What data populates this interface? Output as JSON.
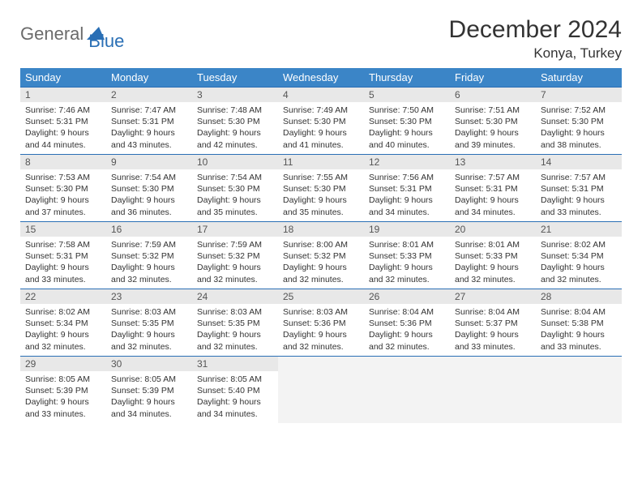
{
  "logo": {
    "text1": "General",
    "text2": "Blue"
  },
  "title": "December 2024",
  "location": "Konya, Turkey",
  "colors": {
    "header_bg": "#3b85c7",
    "header_text": "#ffffff",
    "border": "#2a6fb5",
    "daynum_bg": "#e8e8e8",
    "empty_bg": "#f3f3f3",
    "logo_gray": "#6b6b6b",
    "logo_blue": "#2a6fb5"
  },
  "day_headers": [
    "Sunday",
    "Monday",
    "Tuesday",
    "Wednesday",
    "Thursday",
    "Friday",
    "Saturday"
  ],
  "weeks": [
    [
      {
        "n": "1",
        "sr": "7:46 AM",
        "ss": "5:31 PM",
        "dl": "9 hours and 44 minutes."
      },
      {
        "n": "2",
        "sr": "7:47 AM",
        "ss": "5:31 PM",
        "dl": "9 hours and 43 minutes."
      },
      {
        "n": "3",
        "sr": "7:48 AM",
        "ss": "5:30 PM",
        "dl": "9 hours and 42 minutes."
      },
      {
        "n": "4",
        "sr": "7:49 AM",
        "ss": "5:30 PM",
        "dl": "9 hours and 41 minutes."
      },
      {
        "n": "5",
        "sr": "7:50 AM",
        "ss": "5:30 PM",
        "dl": "9 hours and 40 minutes."
      },
      {
        "n": "6",
        "sr": "7:51 AM",
        "ss": "5:30 PM",
        "dl": "9 hours and 39 minutes."
      },
      {
        "n": "7",
        "sr": "7:52 AM",
        "ss": "5:30 PM",
        "dl": "9 hours and 38 minutes."
      }
    ],
    [
      {
        "n": "8",
        "sr": "7:53 AM",
        "ss": "5:30 PM",
        "dl": "9 hours and 37 minutes."
      },
      {
        "n": "9",
        "sr": "7:54 AM",
        "ss": "5:30 PM",
        "dl": "9 hours and 36 minutes."
      },
      {
        "n": "10",
        "sr": "7:54 AM",
        "ss": "5:30 PM",
        "dl": "9 hours and 35 minutes."
      },
      {
        "n": "11",
        "sr": "7:55 AM",
        "ss": "5:30 PM",
        "dl": "9 hours and 35 minutes."
      },
      {
        "n": "12",
        "sr": "7:56 AM",
        "ss": "5:31 PM",
        "dl": "9 hours and 34 minutes."
      },
      {
        "n": "13",
        "sr": "7:57 AM",
        "ss": "5:31 PM",
        "dl": "9 hours and 34 minutes."
      },
      {
        "n": "14",
        "sr": "7:57 AM",
        "ss": "5:31 PM",
        "dl": "9 hours and 33 minutes."
      }
    ],
    [
      {
        "n": "15",
        "sr": "7:58 AM",
        "ss": "5:31 PM",
        "dl": "9 hours and 33 minutes."
      },
      {
        "n": "16",
        "sr": "7:59 AM",
        "ss": "5:32 PM",
        "dl": "9 hours and 32 minutes."
      },
      {
        "n": "17",
        "sr": "7:59 AM",
        "ss": "5:32 PM",
        "dl": "9 hours and 32 minutes."
      },
      {
        "n": "18",
        "sr": "8:00 AM",
        "ss": "5:32 PM",
        "dl": "9 hours and 32 minutes."
      },
      {
        "n": "19",
        "sr": "8:01 AM",
        "ss": "5:33 PM",
        "dl": "9 hours and 32 minutes."
      },
      {
        "n": "20",
        "sr": "8:01 AM",
        "ss": "5:33 PM",
        "dl": "9 hours and 32 minutes."
      },
      {
        "n": "21",
        "sr": "8:02 AM",
        "ss": "5:34 PM",
        "dl": "9 hours and 32 minutes."
      }
    ],
    [
      {
        "n": "22",
        "sr": "8:02 AM",
        "ss": "5:34 PM",
        "dl": "9 hours and 32 minutes."
      },
      {
        "n": "23",
        "sr": "8:03 AM",
        "ss": "5:35 PM",
        "dl": "9 hours and 32 minutes."
      },
      {
        "n": "24",
        "sr": "8:03 AM",
        "ss": "5:35 PM",
        "dl": "9 hours and 32 minutes."
      },
      {
        "n": "25",
        "sr": "8:03 AM",
        "ss": "5:36 PM",
        "dl": "9 hours and 32 minutes."
      },
      {
        "n": "26",
        "sr": "8:04 AM",
        "ss": "5:36 PM",
        "dl": "9 hours and 32 minutes."
      },
      {
        "n": "27",
        "sr": "8:04 AM",
        "ss": "5:37 PM",
        "dl": "9 hours and 33 minutes."
      },
      {
        "n": "28",
        "sr": "8:04 AM",
        "ss": "5:38 PM",
        "dl": "9 hours and 33 minutes."
      }
    ],
    [
      {
        "n": "29",
        "sr": "8:05 AM",
        "ss": "5:39 PM",
        "dl": "9 hours and 33 minutes."
      },
      {
        "n": "30",
        "sr": "8:05 AM",
        "ss": "5:39 PM",
        "dl": "9 hours and 34 minutes."
      },
      {
        "n": "31",
        "sr": "8:05 AM",
        "ss": "5:40 PM",
        "dl": "9 hours and 34 minutes."
      },
      null,
      null,
      null,
      null
    ]
  ],
  "labels": {
    "sunrise": "Sunrise:",
    "sunset": "Sunset:",
    "daylight": "Daylight:"
  }
}
